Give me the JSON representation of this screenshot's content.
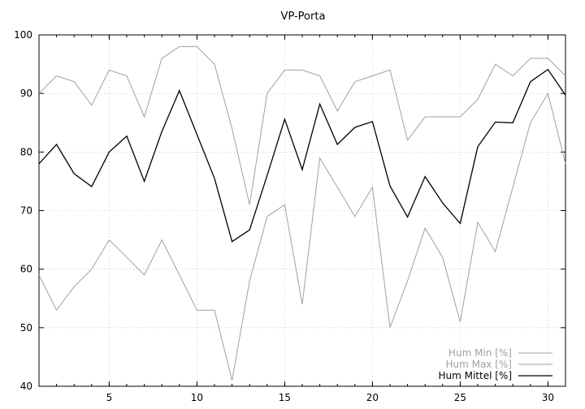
{
  "chart_data": {
    "type": "line",
    "title": "VP-Porta",
    "xlabel": "",
    "ylabel": "",
    "xlim": [
      1,
      31
    ],
    "ylim": [
      40,
      100
    ],
    "x_ticks": [
      5,
      10,
      15,
      20,
      25,
      30
    ],
    "y_ticks": [
      40,
      50,
      60,
      70,
      80,
      90,
      100
    ],
    "grid": "dotted",
    "legend_position": "bottom-right",
    "x": [
      1,
      2,
      3,
      4,
      5,
      6,
      7,
      8,
      9,
      10,
      11,
      12,
      13,
      14,
      15,
      16,
      17,
      18,
      19,
      20,
      21,
      22,
      23,
      24,
      25,
      26,
      27,
      28,
      29,
      30,
      31
    ],
    "series": [
      {
        "name": "Hum Min [%]",
        "color": "#a0a0a0",
        "values": [
          59,
          53,
          57,
          60,
          65,
          62,
          59,
          65,
          59,
          53,
          53,
          41,
          58,
          69,
          71,
          54,
          79,
          74,
          69,
          74,
          50,
          58,
          67,
          62,
          51,
          68,
          63,
          74,
          85,
          90,
          78
        ]
      },
      {
        "name": "Hum Max [%]",
        "color": "#a0a0a0",
        "values": [
          90,
          93,
          92,
          88,
          94,
          93,
          86,
          96,
          98,
          98,
          95,
          84,
          71,
          90,
          94,
          94,
          93,
          87,
          92,
          93,
          94,
          82,
          86,
          86,
          86,
          89,
          95,
          93,
          96,
          96,
          93
        ]
      },
      {
        "name": "Hum Mittel [%]",
        "color": "#000000",
        "values": [
          78,
          81.3,
          76.3,
          74.1,
          80,
          82.7,
          75,
          83.5,
          90.5,
          83,
          75.5,
          64.7,
          66.7,
          76,
          85.6,
          77,
          88.2,
          81.3,
          84.2,
          85.2,
          74.2,
          68.9,
          75.8,
          71.3,
          67.8,
          80.9,
          85.1,
          85,
          92,
          94.1,
          89.7
        ]
      }
    ]
  }
}
